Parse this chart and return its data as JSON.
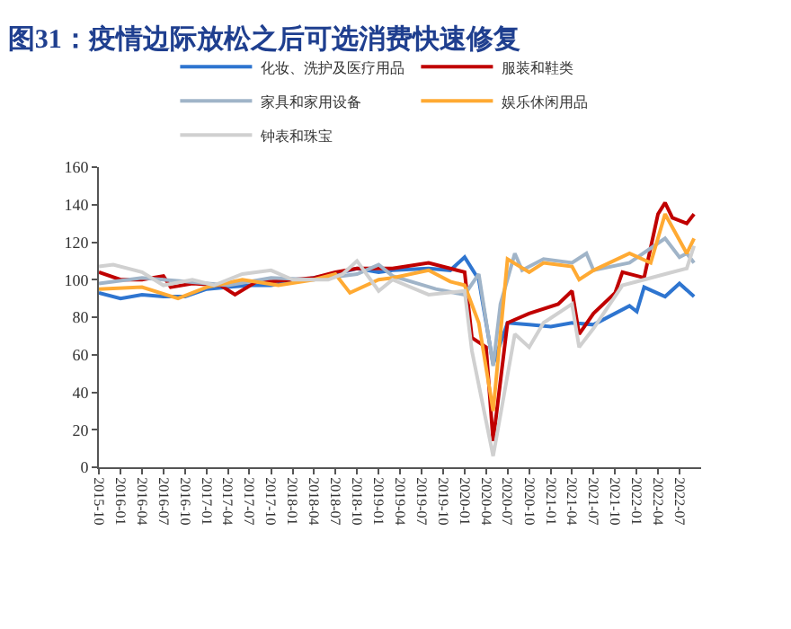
{
  "chart_data": {
    "type": "line",
    "title": "图31：疫情边际放松之后可选消费快速修复",
    "xlim": [
      "2015-10",
      "2022-10"
    ],
    "xticks": [
      "2015-10",
      "2016-01",
      "2016-04",
      "2016-07",
      "2016-10",
      "2017-01",
      "2017-04",
      "2017-07",
      "2017-10",
      "2018-01",
      "2018-04",
      "2018-07",
      "2018-10",
      "2019-01",
      "2019-04",
      "2019-07",
      "2019-10",
      "2020-01",
      "2020-04",
      "2020-07",
      "2020-10",
      "2021-01",
      "2021-04",
      "2021-07",
      "2021-10",
      "2022-01",
      "2022-04",
      "2022-07"
    ],
    "ylim": [
      0,
      160
    ],
    "yticks": [
      0,
      20,
      40,
      60,
      80,
      100,
      120,
      140,
      160
    ],
    "legend": "top",
    "marker": "none",
    "line_style": "solid",
    "series": [
      {
        "name": "化妆、洗护及医疗用品",
        "color": "#2e75d0",
        "x": [
          "2015-10",
          "2016-01",
          "2016-04",
          "2016-07",
          "2016-10",
          "2017-01",
          "2017-04",
          "2017-07",
          "2017-10",
          "2018-01",
          "2018-04",
          "2018-07",
          "2018-10",
          "2019-01",
          "2019-03",
          "2019-08",
          "2019-11",
          "2020-01",
          "2020-03",
          "2020-05",
          "2020-07",
          "2020-10",
          "2021-01",
          "2021-04",
          "2021-07",
          "2021-12",
          "2022-01",
          "2022-02",
          "2022-05",
          "2022-07",
          "2022-09"
        ],
        "values": [
          93,
          90,
          92,
          91,
          91,
          95,
          96,
          97,
          97,
          99,
          101,
          103,
          106,
          104,
          105,
          106,
          105,
          112,
          100,
          55,
          77,
          76,
          75,
          77,
          76,
          86,
          83,
          96,
          91,
          98,
          91
        ]
      },
      {
        "name": "服装和鞋类",
        "color": "#c00000",
        "x": [
          "2015-10",
          "2016-01",
          "2016-04",
          "2016-07",
          "2016-08",
          "2016-11",
          "2017-03",
          "2017-05",
          "2017-08",
          "2017-10",
          "2018-01",
          "2018-04",
          "2018-07",
          "2018-10",
          "2019-03",
          "2019-08",
          "2020-01",
          "2020-02",
          "2020-04",
          "2020-05",
          "2020-07",
          "2020-10",
          "2021-02",
          "2021-04",
          "2021-05",
          "2021-07",
          "2021-10",
          "2021-11",
          "2022-02",
          "2022-04",
          "2022-05",
          "2022-06",
          "2022-08",
          "2022-09"
        ],
        "values": [
          104,
          100,
          100,
          102,
          96,
          98,
          97,
          92,
          99,
          99,
          100,
          101,
          104,
          106,
          106,
          109,
          104,
          69,
          64,
          14,
          77,
          82,
          87,
          94,
          71,
          82,
          93,
          104,
          101,
          135,
          141,
          133,
          130,
          135
        ]
      },
      {
        "name": "家具和家用设备",
        "color": "#a0b4c8",
        "x": [
          "2015-10",
          "2016-04",
          "2016-10",
          "2017-04",
          "2017-10",
          "2018-04",
          "2018-10",
          "2019-01",
          "2019-03",
          "2019-09",
          "2020-01",
          "2020-03",
          "2020-05",
          "2020-06",
          "2020-08",
          "2020-09",
          "2020-12",
          "2021-04",
          "2021-06",
          "2021-07",
          "2021-12",
          "2022-05",
          "2022-07",
          "2022-08",
          "2022-09"
        ],
        "values": [
          98,
          101,
          99,
          97,
          101,
          100,
          103,
          108,
          102,
          95,
          92,
          103,
          54,
          87,
          114,
          105,
          111,
          109,
          114,
          105,
          109,
          122,
          112,
          114,
          109
        ]
      },
      {
        "name": "娱乐休闲用品",
        "color": "#ffaa33",
        "x": [
          "2015-10",
          "2016-04",
          "2016-09",
          "2017-01",
          "2017-06",
          "2017-11",
          "2018-04",
          "2018-07",
          "2018-09",
          "2019-01",
          "2019-03",
          "2019-08",
          "2019-11",
          "2020-01",
          "2020-03",
          "2020-05",
          "2020-07",
          "2020-10",
          "2020-12",
          "2021-04",
          "2021-05",
          "2021-07",
          "2021-12",
          "2022-03",
          "2022-05",
          "2022-08",
          "2022-09"
        ],
        "values": [
          95,
          96,
          90,
          96,
          100,
          97,
          100,
          103,
          93,
          100,
          101,
          105,
          99,
          97,
          77,
          30,
          111,
          104,
          109,
          107,
          100,
          105,
          114,
          109,
          135,
          114,
          122
        ]
      },
      {
        "name": "钟表和珠宝",
        "color": "#d0d0d0",
        "x": [
          "2015-10",
          "2015-12",
          "2016-04",
          "2016-07",
          "2016-11",
          "2017-02",
          "2017-06",
          "2017-10",
          "2018-01",
          "2018-06",
          "2018-08",
          "2018-10",
          "2019-01",
          "2019-03",
          "2019-08",
          "2020-01",
          "2020-02",
          "2020-05",
          "2020-08",
          "2020-10",
          "2020-12",
          "2021-04",
          "2021-05",
          "2021-07",
          "2021-11",
          "2022-02",
          "2022-05",
          "2022-08",
          "2022-09"
        ],
        "values": [
          107,
          108,
          104,
          97,
          100,
          97,
          103,
          105,
          100,
          100,
          103,
          110,
          94,
          100,
          92,
          94,
          62,
          6,
          71,
          64,
          77,
          87,
          64,
          74,
          97,
          100,
          103,
          106,
          118
        ]
      }
    ]
  }
}
